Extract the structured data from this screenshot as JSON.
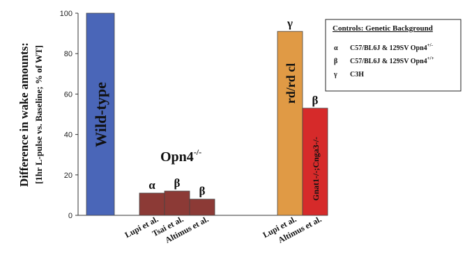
{
  "chart_data": {
    "type": "bar",
    "ylabel_line1": "Difference in wake amounts:",
    "ylabel_line2": "[1hr L-pulse vs. Baseline; % of WT]",
    "ylim": [
      0,
      100
    ],
    "yticks": [
      "0",
      "20",
      "40",
      "60",
      "80",
      "100"
    ],
    "bars": [
      {
        "id": "wt",
        "value": 100,
        "inner_label": "Wild-type",
        "marker": "",
        "category": "",
        "color": "#4a66b8"
      },
      {
        "id": "opn-lupi",
        "value": 11,
        "inner_label": "",
        "marker": "α",
        "category": "Lupi et al.",
        "color": "#8c3a36"
      },
      {
        "id": "opn-tsai",
        "value": 12,
        "inner_label": "",
        "marker": "β",
        "category": "Tsai et al.",
        "color": "#8c3a36"
      },
      {
        "id": "opn-altimus",
        "value": 8,
        "inner_label": "",
        "marker": "β",
        "category": "Altimus et al.",
        "color": "#8c3a36"
      },
      {
        "id": "rd-lupi",
        "value": 91,
        "inner_label": "rd/rd cl",
        "marker": "γ",
        "category": "Lupi et al.",
        "color": "#e09a45"
      },
      {
        "id": "gnat-altimus",
        "value": 53,
        "inner_label": "Gnat1-/-;Cnga3-/-",
        "marker": "β",
        "category": "Altimus et al.",
        "color": "#d62a2a"
      }
    ],
    "group_labels": {
      "opn4": {
        "base": "Opn4",
        "sup": "-/-"
      }
    },
    "legend": {
      "title": "Controls:  Genetic Background",
      "entries": [
        {
          "symbol": "α",
          "text": "C57/BL6J & 129SV Opn4",
          "sup": "+/-"
        },
        {
          "symbol": "β",
          "text": "C57/BL6J & 129SV Opn4",
          "sup": "+/+"
        },
        {
          "symbol": "γ",
          "text": "C3H",
          "sup": ""
        }
      ]
    },
    "grid": false,
    "legend_position": "top-right"
  }
}
